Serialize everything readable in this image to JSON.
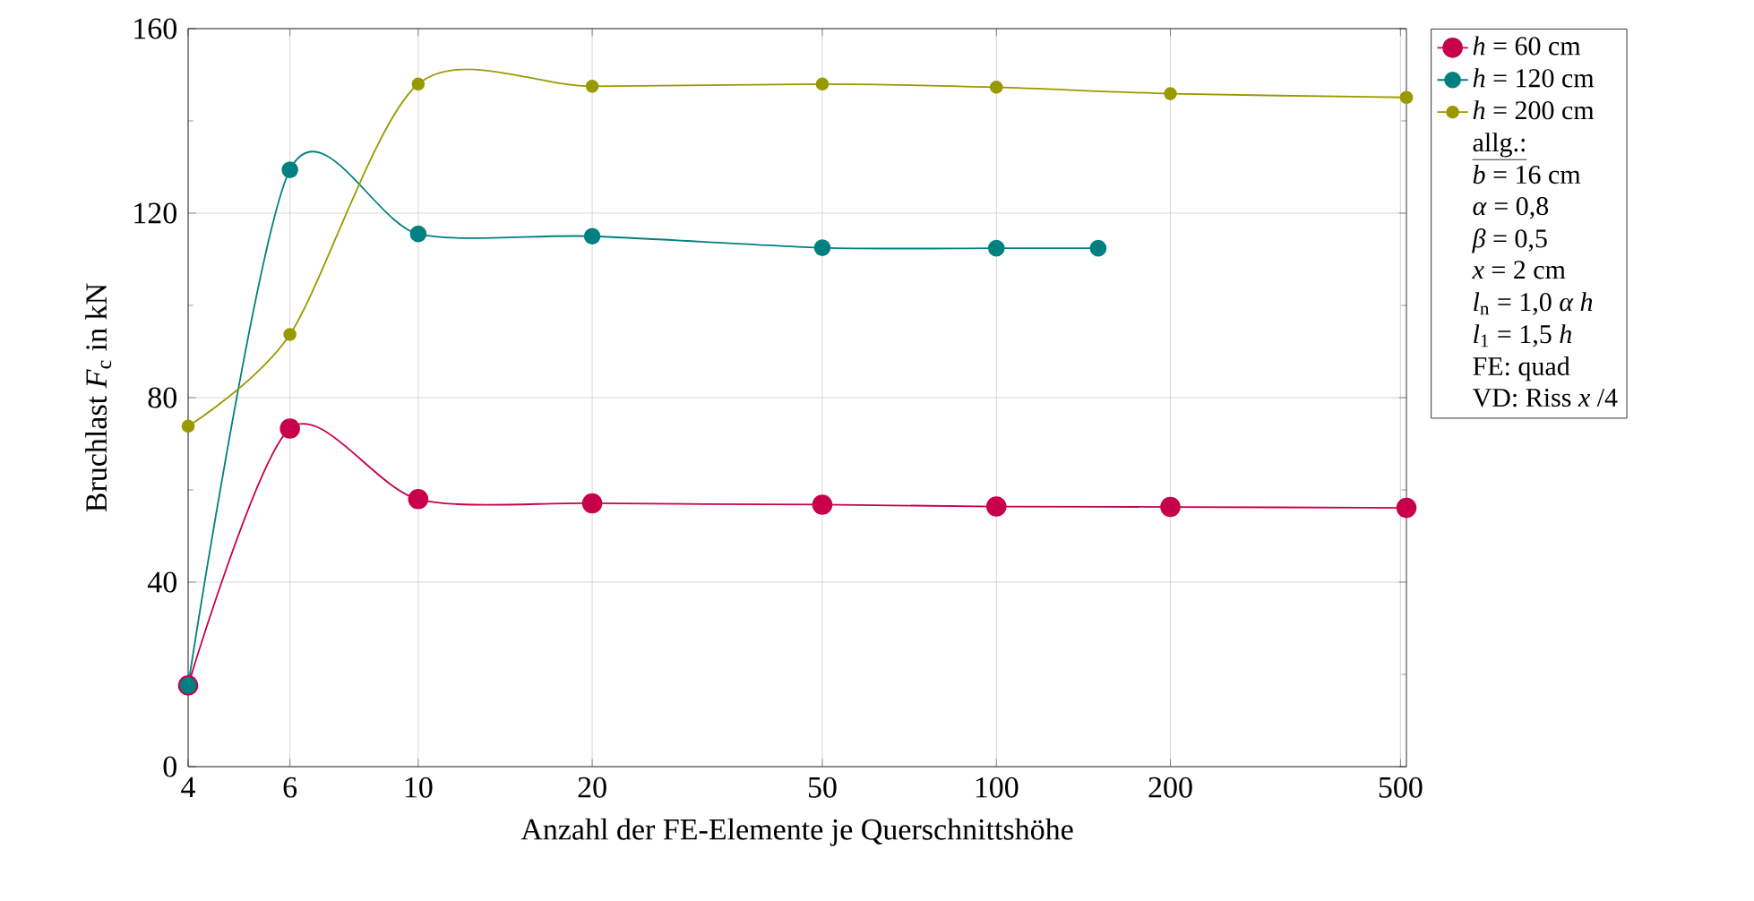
{
  "chart_data": {
    "type": "line",
    "xlabel": "Anzahl der FE-Elemente je Querschnittshöhe",
    "ylabel": "Bruchlast *F*$_{c}$ in kN",
    "log": "x",
    "grid": true,
    "legend": "right",
    "marker": "circle",
    "line_style": "solid",
    "xlim": [
      4,
      512
    ],
    "xticks": [
      4,
      6,
      10,
      20,
      50,
      100,
      200,
      500
    ],
    "ylim": [
      0,
      160
    ],
    "yticks": [
      0,
      40,
      80,
      120,
      160
    ],
    "series": [
      {
        "name": "*h* = 60 cm",
        "color": "#c8004b",
        "x": [
          4,
          6,
          10,
          20,
          50,
          100,
          200,
          512
        ],
        "values": [
          17.6,
          73.3,
          58.0,
          57.1,
          56.8,
          56.4,
          56.3,
          56.1
        ]
      },
      {
        "name": "*h* = 120 cm",
        "color": "#008080",
        "x": [
          4,
          6,
          10,
          20,
          50,
          100,
          150
        ],
        "values": [
          17.6,
          129.4,
          115.5,
          115.0,
          112.5,
          112.4,
          112.4
        ]
      },
      {
        "name": "*h* = 200 cm",
        "color": "#999900",
        "x": [
          4,
          6,
          10,
          20,
          50,
          100,
          200,
          512
        ],
        "values": [
          73.8,
          93.7,
          148.0,
          147.5,
          148.0,
          147.3,
          145.9,
          145.1
        ]
      }
    ],
    "annotations": [
      "allg.:",
      "*b* = 16 cm",
      "*α* = 0,8",
      "*β* = 0,5",
      "*x* = 2 cm",
      "*l*$_{n}$ = 1,0 *α h*",
      "*l*$_{1}$ = 1,5 *h*",
      "FE: quad",
      "VD: Riss *x* /4"
    ]
  }
}
